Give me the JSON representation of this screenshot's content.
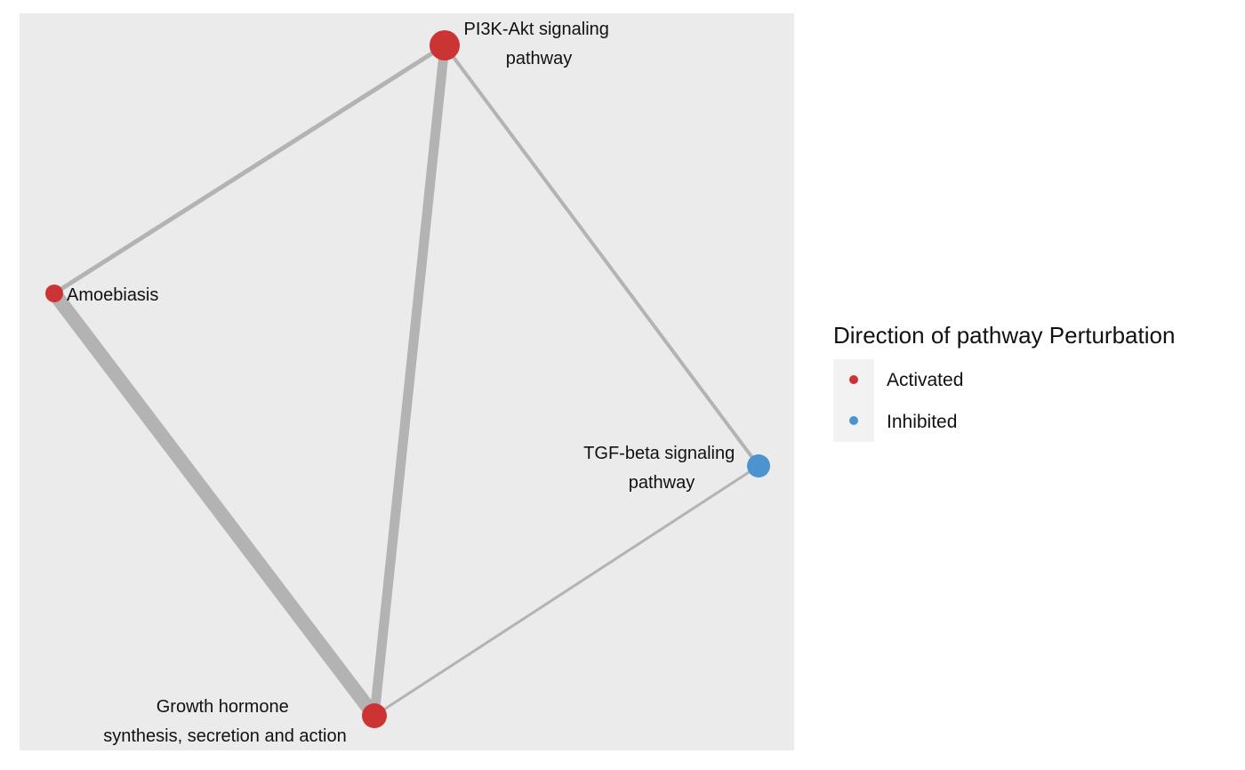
{
  "network": {
    "nodes": [
      {
        "id": "pi3k",
        "label_lines": [
          "PI3K-Akt signaling",
          "pathway"
        ],
        "direction": "Activated"
      },
      {
        "id": "amoebiasis",
        "label_lines": [
          "Amoebiasis"
        ],
        "direction": "Activated"
      },
      {
        "id": "tgf",
        "label_lines": [
          "TGF-beta signaling",
          "pathway"
        ],
        "direction": "Inhibited"
      },
      {
        "id": "growth",
        "label_lines": [
          "Growth hormone",
          "synthesis, secretion and action"
        ],
        "direction": "Activated"
      }
    ],
    "edges": [
      {
        "source": "pi3k",
        "target": "amoebiasis"
      },
      {
        "source": "pi3k",
        "target": "growth"
      },
      {
        "source": "pi3k",
        "target": "tgf"
      },
      {
        "source": "amoebiasis",
        "target": "growth"
      },
      {
        "source": "tgf",
        "target": "growth"
      }
    ]
  },
  "legend": {
    "title": "Direction of pathway Perturbation",
    "items": [
      {
        "label": "Activated",
        "color": "#CC3333"
      },
      {
        "label": "Inhibited",
        "color": "#4D93CF"
      }
    ]
  },
  "colors": {
    "panel_background": "#EBEBEB",
    "edge": "#B3B3B3",
    "activated": "#CC3333",
    "inhibited": "#4D93CF",
    "legend_key_background": "#F2F2F2"
  }
}
